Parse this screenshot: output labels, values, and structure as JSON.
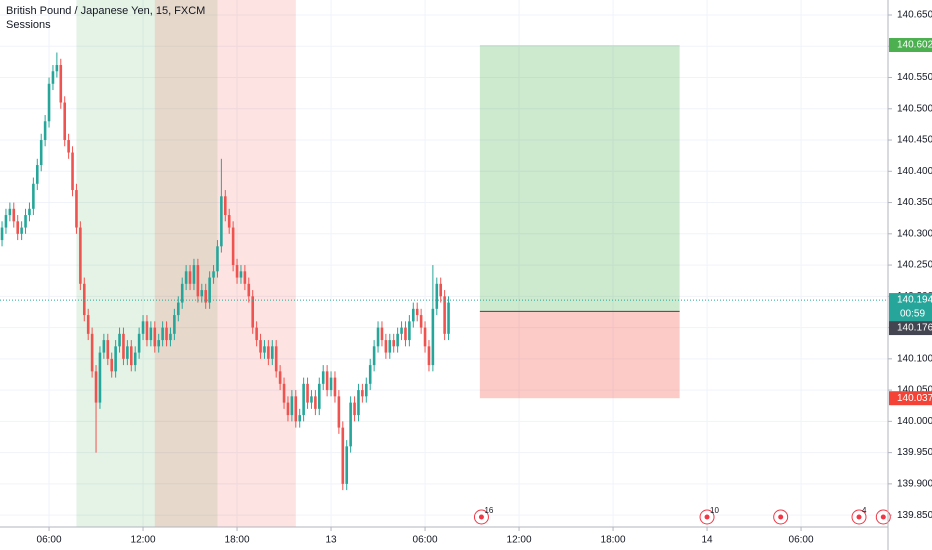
{
  "chart_data": {
    "type": "candlestick",
    "title": "British Pound / Japanese Yen, 15, FXCM",
    "subtitle": "Sessions",
    "x": [
      3,
      3.25,
      3.5,
      3.75,
      4,
      4.25,
      4.5,
      4.75,
      5,
      5.25,
      5.5,
      5.75,
      6,
      6.25,
      6.5,
      6.75,
      7,
      7.25,
      7.5,
      7.75,
      8,
      8.25,
      8.5,
      8.75,
      9,
      9.25,
      9.5,
      9.75,
      10,
      10.25,
      10.5,
      10.75,
      11,
      11.25,
      11.5,
      11.75,
      12,
      12.25,
      12.5,
      12.75,
      13,
      13.25,
      13.5,
      13.75,
      14,
      14.25,
      14.5,
      14.75,
      15,
      15.25,
      15.5,
      15.75,
      16,
      16.25,
      16.5,
      16.75,
      17,
      17.25,
      17.5,
      17.75,
      18,
      18.25,
      18.5,
      18.75,
      19,
      19.25,
      19.5,
      19.75,
      20,
      20.25,
      20.5,
      20.75,
      21,
      21.25,
      21.5,
      21.75,
      22,
      22.25,
      22.5,
      22.75,
      23,
      23.25,
      23.5,
      23.75,
      24,
      24.25,
      24.5,
      24.75,
      25,
      25.25,
      25.5,
      25.75,
      26,
      26.25,
      26.5,
      26.75,
      27,
      27.25,
      27.5,
      27.75,
      28,
      28.25,
      28.5,
      28.75,
      29,
      29.25,
      29.5,
      29.75,
      30,
      30.25,
      30.5,
      30.75,
      31,
      31.25,
      31.5
    ],
    "open": [
      140.29,
      140.31,
      140.33,
      140.34,
      140.32,
      140.3,
      140.31,
      140.33,
      140.34,
      140.38,
      140.41,
      140.45,
      140.48,
      140.54,
      140.56,
      140.57,
      140.51,
      140.45,
      140.43,
      140.37,
      140.31,
      140.22,
      140.17,
      140.14,
      140.08,
      140.03,
      140.11,
      140.13,
      140.1,
      140.08,
      140.12,
      140.14,
      140.1,
      140.12,
      140.09,
      140.11,
      140.14,
      140.16,
      140.13,
      140.15,
      140.12,
      140.13,
      140.15,
      140.13,
      140.14,
      140.17,
      140.19,
      140.22,
      140.24,
      140.22,
      140.25,
      140.2,
      140.21,
      140.19,
      140.23,
      140.24,
      140.28,
      140.36,
      140.33,
      140.31,
      140.25,
      140.23,
      140.24,
      140.22,
      140.2,
      140.15,
      140.13,
      140.11,
      140.12,
      140.1,
      140.12,
      140.08,
      140.06,
      140.03,
      140.01,
      140.04,
      140.0,
      140.01,
      140.06,
      140.03,
      140.04,
      140.02,
      140.06,
      140.08,
      140.05,
      140.07,
      140.04,
      139.99,
      139.9,
      139.96,
      140.03,
      140.01,
      140.05,
      140.04,
      140.06,
      140.09,
      140.12,
      140.15,
      140.13,
      140.11,
      140.13,
      140.12,
      140.14,
      140.15,
      140.13,
      140.16,
      140.18,
      140.17,
      140.15,
      140.12,
      140.09,
      140.18,
      140.22,
      140.2,
      140.14
    ],
    "high": [
      140.32,
      140.34,
      140.35,
      140.35,
      140.33,
      140.32,
      140.34,
      140.35,
      140.39,
      140.42,
      140.46,
      140.49,
      140.55,
      140.57,
      140.59,
      140.58,
      140.52,
      140.46,
      140.44,
      140.38,
      140.32,
      140.23,
      140.18,
      140.15,
      140.09,
      140.12,
      140.14,
      140.14,
      140.11,
      140.13,
      140.15,
      140.15,
      140.13,
      140.13,
      140.12,
      140.15,
      140.17,
      140.17,
      140.16,
      140.16,
      140.14,
      140.16,
      140.16,
      140.15,
      140.18,
      140.2,
      140.23,
      140.25,
      140.25,
      140.26,
      140.26,
      140.22,
      140.22,
      140.24,
      140.25,
      140.29,
      140.42,
      140.37,
      140.34,
      140.32,
      140.26,
      140.25,
      140.25,
      140.23,
      140.21,
      140.16,
      140.14,
      140.13,
      140.13,
      140.13,
      140.13,
      140.09,
      140.07,
      140.04,
      140.05,
      140.05,
      140.02,
      140.07,
      140.07,
      140.05,
      140.05,
      140.07,
      140.09,
      140.09,
      140.08,
      140.08,
      140.05,
      140,
      139.97,
      140.04,
      140.04,
      140.06,
      140.06,
      140.07,
      140.1,
      140.13,
      140.16,
      140.16,
      140.14,
      140.14,
      140.14,
      140.15,
      140.16,
      140.16,
      140.17,
      140.19,
      140.19,
      140.18,
      140.16,
      140.13,
      140.25,
      140.23,
      140.23,
      140.21,
      140.2
    ],
    "low": [
      140.28,
      140.3,
      140.32,
      140.31,
      140.29,
      140.29,
      140.3,
      140.32,
      140.33,
      140.37,
      140.4,
      140.44,
      140.47,
      140.53,
      140.55,
      140.5,
      140.44,
      140.42,
      140.36,
      140.3,
      140.21,
      140.16,
      140.13,
      140.07,
      139.95,
      140.02,
      140.1,
      140.09,
      140.07,
      140.07,
      140.11,
      140.09,
      140.09,
      140.08,
      140.08,
      140.1,
      140.13,
      140.12,
      140.12,
      140.11,
      140.11,
      140.12,
      140.12,
      140.12,
      140.13,
      140.16,
      140.18,
      140.21,
      140.21,
      140.21,
      140.19,
      140.19,
      140.18,
      140.18,
      140.22,
      140.23,
      140.27,
      140.32,
      140.3,
      140.24,
      140.22,
      140.22,
      140.21,
      140.19,
      140.14,
      140.12,
      140.1,
      140.1,
      140.09,
      140.09,
      140.07,
      140.05,
      140.02,
      140,
      140,
      139.99,
      139.99,
      140,
      140.02,
      140.02,
      140.01,
      140.01,
      140.05,
      140.04,
      140.04,
      140.03,
      139.98,
      139.89,
      139.89,
      139.95,
      140,
      140,
      140.03,
      140.03,
      140.05,
      140.08,
      140.11,
      140.12,
      140.1,
      140.1,
      140.11,
      140.11,
      140.13,
      140.12,
      140.12,
      140.15,
      140.16,
      140.14,
      140.11,
      140.08,
      140.08,
      140.17,
      140.19,
      140.13,
      140.13
    ],
    "close": [
      140.31,
      140.33,
      140.34,
      140.32,
      140.3,
      140.31,
      140.33,
      140.34,
      140.38,
      140.41,
      140.45,
      140.48,
      140.54,
      140.56,
      140.57,
      140.51,
      140.45,
      140.43,
      140.37,
      140.31,
      140.22,
      140.17,
      140.14,
      140.08,
      140.03,
      140.11,
      140.13,
      140.1,
      140.08,
      140.12,
      140.14,
      140.1,
      140.12,
      140.09,
      140.11,
      140.14,
      140.16,
      140.13,
      140.15,
      140.12,
      140.13,
      140.15,
      140.13,
      140.14,
      140.17,
      140.19,
      140.22,
      140.24,
      140.22,
      140.25,
      140.2,
      140.21,
      140.19,
      140.23,
      140.24,
      140.28,
      140.36,
      140.33,
      140.31,
      140.25,
      140.23,
      140.24,
      140.22,
      140.2,
      140.15,
      140.13,
      140.11,
      140.12,
      140.1,
      140.12,
      140.08,
      140.06,
      140.03,
      140.01,
      140.04,
      140.0,
      140.01,
      140.06,
      140.03,
      140.04,
      140.02,
      140.06,
      140.08,
      140.05,
      140.07,
      140.04,
      139.99,
      139.9,
      139.96,
      140.03,
      140.01,
      140.05,
      140.04,
      140.06,
      140.09,
      140.12,
      140.15,
      140.13,
      140.11,
      140.13,
      140.12,
      140.14,
      140.15,
      140.13,
      140.16,
      140.18,
      140.17,
      140.15,
      140.12,
      140.09,
      140.18,
      140.22,
      140.2,
      140.14,
      140.19
    ],
    "up_color": "#26a69a",
    "down_color": "#ef5350",
    "xlim": [
      2.87,
      59.55
    ],
    "ylim": [
      139.831,
      140.674
    ],
    "xticks": [
      {
        "value": 6,
        "label": "06:00"
      },
      {
        "value": 12,
        "label": "12:00"
      },
      {
        "value": 18,
        "label": "18:00"
      },
      {
        "value": 24,
        "label": "13"
      },
      {
        "value": 30,
        "label": "06:00"
      },
      {
        "value": 36,
        "label": "12:00"
      },
      {
        "value": 42,
        "label": "18:00"
      },
      {
        "value": 48,
        "label": "14"
      },
      {
        "value": 54,
        "label": "06:00"
      }
    ],
    "yticks": [
      {
        "value": 139.85,
        "label": "139.850"
      },
      {
        "value": 139.9,
        "label": "139.900"
      },
      {
        "value": 139.95,
        "label": "139.950"
      },
      {
        "value": 140,
        "label": "140.000"
      },
      {
        "value": 140.05,
        "label": "140.050"
      },
      {
        "value": 140.1,
        "label": "140.100"
      },
      {
        "value": 140.15,
        "label": "140.150"
      },
      {
        "value": 140.2,
        "label": "140.200"
      },
      {
        "value": 140.25,
        "label": "140.250"
      },
      {
        "value": 140.3,
        "label": "140.300"
      },
      {
        "value": 140.35,
        "label": "140.350"
      },
      {
        "value": 140.4,
        "label": "140.400"
      },
      {
        "value": 140.45,
        "label": "140.450"
      },
      {
        "value": 140.5,
        "label": "140.500"
      },
      {
        "value": 140.55,
        "label": "140.550"
      },
      {
        "value": 140.6,
        "label": "140.600"
      },
      {
        "value": 140.65,
        "label": "140.650"
      }
    ],
    "grid": true,
    "sessions": [
      {
        "start": 7.75,
        "end": 16.75,
        "color": "#4caf50"
      },
      {
        "start": 12.75,
        "end": 21.75,
        "color": "#f44336"
      }
    ],
    "position": {
      "start": 33.5,
      "end": 46.25,
      "entry": 140.176,
      "target": 140.602,
      "stop": 140.037,
      "profit_color": "#4caf50",
      "loss_color": "#f44336",
      "entry_color": "#434651"
    },
    "last_price": {
      "value": 140.194,
      "countdown": "00:59",
      "color": "#26a69a"
    },
    "events": [
      {
        "x": 33.6,
        "label": 16
      },
      {
        "x": 48,
        "label": 10
      },
      {
        "x": 52.7
      },
      {
        "x": 57.7,
        "label": 4
      },
      {
        "x": 59.25
      }
    ]
  }
}
